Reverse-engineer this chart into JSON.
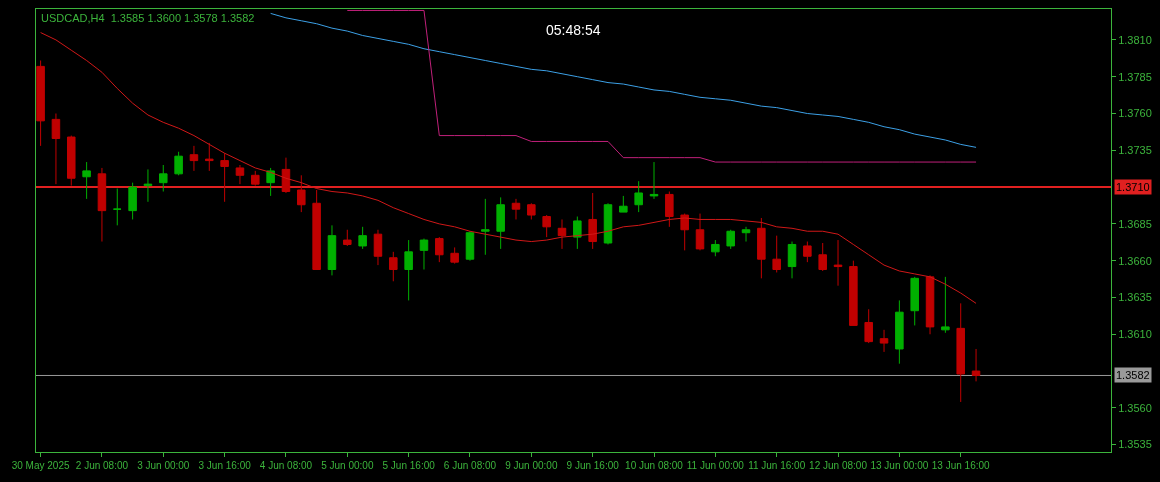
{
  "chart_data": {
    "type": "candlestick",
    "title": "USDCAD,H4  1.3585 1.3600 1.3578 1.3582",
    "categories": [
      "30 May 2025",
      null,
      null,
      null,
      "2 Jun 08:00",
      null,
      null,
      null,
      "3 Jun 00:00",
      null,
      null,
      null,
      "3 Jun 16:00",
      null,
      null,
      null,
      "4 Jun 08:00",
      null,
      null,
      null,
      "5 Jun 00:00",
      null,
      null,
      null,
      "5 Jun 16:00",
      null,
      null,
      null,
      "6 Jun 08:00",
      null,
      null,
      null,
      "9 Jun 00:00",
      null,
      null,
      null,
      "9 Jun 16:00",
      null,
      null,
      null,
      "10 Jun 08:00",
      null,
      null,
      null,
      "11 Jun 00:00",
      null,
      null,
      null,
      "11 Jun 16:00",
      null,
      null,
      null,
      "12 Jun 08:00",
      null,
      null,
      null,
      "13 Jun 00:00",
      null,
      null,
      null,
      "13 Jun 16:00",
      null
    ],
    "ohlc": [
      [
        1.3792,
        1.3796,
        1.3738,
        1.3755
      ],
      [
        1.3756,
        1.376,
        1.3712,
        1.3743
      ],
      [
        1.3744,
        1.3745,
        1.3711,
        1.3716
      ],
      [
        1.3717,
        1.3727,
        1.3702,
        1.3721
      ],
      [
        1.3719,
        1.3723,
        1.3673,
        1.3694
      ],
      [
        1.3695,
        1.3709,
        1.3684,
        1.3695
      ],
      [
        1.3694,
        1.3713,
        1.3688,
        1.371
      ],
      [
        1.3711,
        1.3722,
        1.37,
        1.3712
      ],
      [
        1.3713,
        1.3725,
        1.3707,
        1.3719
      ],
      [
        1.3719,
        1.3734,
        1.3718,
        1.3731
      ],
      [
        1.3732,
        1.3738,
        1.3721,
        1.3728
      ],
      [
        1.3729,
        1.374,
        1.3721,
        1.3728
      ],
      [
        1.3728,
        1.3733,
        1.37,
        1.3724
      ],
      [
        1.3723,
        1.3725,
        1.3712,
        1.3718
      ],
      [
        1.3718,
        1.3721,
        1.3711,
        1.3712
      ],
      [
        1.3713,
        1.3723,
        1.3704,
        1.3721
      ],
      [
        1.3722,
        1.373,
        1.3706,
        1.3707
      ],
      [
        1.3708,
        1.3718,
        1.3693,
        1.3698
      ],
      [
        1.3699,
        1.3708,
        1.3654,
        1.3654
      ],
      [
        1.3654,
        1.3684,
        1.365,
        1.3677
      ],
      [
        1.3674,
        1.3681,
        1.367,
        1.3671
      ],
      [
        1.367,
        1.3683,
        1.3668,
        1.3677
      ],
      [
        1.3678,
        1.3681,
        1.3657,
        1.3663
      ],
      [
        1.3662,
        1.3666,
        1.3646,
        1.3654
      ],
      [
        1.3654,
        1.3674,
        1.3633,
        1.3666
      ],
      [
        1.3667,
        1.3675,
        1.3654,
        1.3674
      ],
      [
        1.3675,
        1.3676,
        1.3659,
        1.3664
      ],
      [
        1.3665,
        1.3669,
        1.3658,
        1.3659
      ],
      [
        1.3661,
        1.368,
        1.366,
        1.3679
      ],
      [
        1.368,
        1.3702,
        1.3664,
        1.3681
      ],
      [
        1.368,
        1.3703,
        1.3668,
        1.3698
      ],
      [
        1.3699,
        1.3702,
        1.3688,
        1.3695
      ],
      [
        1.3698,
        1.3699,
        1.3688,
        1.3691
      ],
      [
        1.369,
        1.3691,
        1.3676,
        1.3683
      ],
      [
        1.3682,
        1.3688,
        1.3668,
        1.3677
      ],
      [
        1.3676,
        1.369,
        1.3668,
        1.3687
      ],
      [
        1.3688,
        1.3706,
        1.3668,
        1.3673
      ],
      [
        1.3672,
        1.3699,
        1.3671,
        1.3698
      ],
      [
        1.3693,
        1.3704,
        1.3693,
        1.3697
      ],
      [
        1.3698,
        1.3714,
        1.3693,
        1.3706
      ],
      [
        1.3704,
        1.3727,
        1.3702,
        1.3705
      ],
      [
        1.3705,
        1.3707,
        1.3683,
        1.369
      ],
      [
        1.3691,
        1.3692,
        1.3667,
        1.3681
      ],
      [
        1.3681,
        1.3692,
        1.3667,
        1.3668
      ],
      [
        1.3666,
        1.3674,
        1.3663,
        1.3671
      ],
      [
        1.367,
        1.3681,
        1.3668,
        1.368
      ],
      [
        1.3679,
        1.3683,
        1.3673,
        1.3681
      ],
      [
        1.3682,
        1.3689,
        1.3648,
        1.3661
      ],
      [
        1.3661,
        1.3677,
        1.3652,
        1.3654
      ],
      [
        1.3656,
        1.3673,
        1.3648,
        1.3671
      ],
      [
        1.367,
        1.3673,
        1.3659,
        1.3663
      ],
      [
        1.3664,
        1.3672,
        1.3653,
        1.3654
      ],
      [
        1.3657,
        1.3674,
        1.3643,
        1.3656
      ],
      [
        1.3656,
        1.366,
        1.3616,
        1.3616
      ],
      [
        1.3618,
        1.3627,
        1.3604,
        1.3605
      ],
      [
        1.3607,
        1.3613,
        1.3598,
        1.3604
      ],
      [
        1.36,
        1.3633,
        1.359,
        1.3625
      ],
      [
        1.3626,
        1.3649,
        1.3616,
        1.3648
      ],
      [
        1.3649,
        1.365,
        1.361,
        1.3615
      ],
      [
        1.3613,
        1.3649,
        1.3611,
        1.3615
      ],
      [
        1.3614,
        1.3631,
        1.3564,
        1.3583
      ],
      [
        1.3585,
        1.36,
        1.3578,
        1.3582
      ]
    ],
    "colors": [
      "#c00000",
      "#c00000",
      "#c00000",
      "#00b000",
      "#c00000",
      "#00b000",
      "#00b000",
      "#00b000",
      "#00b000",
      "#00b000",
      "#c00000",
      "#c00000",
      "#c00000",
      "#c00000",
      "#c00000",
      "#00b000",
      "#c00000",
      "#c00000",
      "#c00000",
      "#00b000",
      "#c00000",
      "#00b000",
      "#c00000",
      "#c00000",
      "#00b000",
      "#00b000",
      "#c00000",
      "#c00000",
      "#00b000",
      "#00b000",
      "#00b000",
      "#c00000",
      "#c00000",
      "#c00000",
      "#c00000",
      "#00b000",
      "#c00000",
      "#00b000",
      "#00b000",
      "#00b000",
      "#00b000",
      "#c00000",
      "#c00000",
      "#c00000",
      "#00b000",
      "#00b000",
      "#00b000",
      "#c00000",
      "#c00000",
      "#00b000",
      "#c00000",
      "#c00000",
      "#c00000",
      "#c00000",
      "#c00000",
      "#c00000",
      "#00b000",
      "#00b000",
      "#c00000",
      "#00b000",
      "#c00000",
      "#c00000"
    ],
    "series": [
      {
        "type": "line",
        "color": "#d01818",
        "values": [
          1.3815,
          1.381,
          1.3803,
          1.3796,
          1.3788,
          1.3777,
          1.3767,
          1.3759,
          1.3754,
          1.375,
          1.3745,
          1.3739,
          1.3733,
          1.3728,
          1.3723,
          1.372,
          1.3716,
          1.3713,
          1.3709,
          1.3707,
          1.3706,
          1.3704,
          1.3701,
          1.3696,
          1.3692,
          1.3688,
          1.3685,
          1.3683,
          1.368,
          1.3678,
          1.3676,
          1.3674,
          1.3673,
          1.3674,
          1.3676,
          1.3677,
          1.3678,
          1.368,
          1.3683,
          1.3684,
          1.3686,
          1.3688,
          1.3689,
          1.3688,
          1.3688,
          1.3688,
          1.3687,
          1.3686,
          1.3683,
          1.3682,
          1.368,
          1.368,
          1.3678,
          1.3671,
          1.3664,
          1.3657,
          1.3653,
          1.3651,
          1.3649,
          1.3644,
          1.3638,
          1.3631
        ]
      },
      {
        "type": "line",
        "color": "#3ca0e6",
        "values": [
          null,
          null,
          null,
          null,
          null,
          null,
          null,
          null,
          null,
          null,
          null,
          null,
          null,
          null,
          null,
          1.3828,
          1.3825,
          1.3823,
          1.3821,
          1.3818,
          1.3816,
          1.3813,
          1.3811,
          1.3809,
          1.3807,
          1.3804,
          1.3802,
          1.38,
          1.3798,
          1.3796,
          1.3794,
          1.3792,
          1.379,
          1.3789,
          1.3787,
          1.3785,
          1.3783,
          1.3781,
          1.378,
          1.3778,
          1.3776,
          1.3775,
          1.3773,
          1.3771,
          1.377,
          1.3769,
          1.3767,
          1.3765,
          1.3764,
          1.3762,
          1.376,
          1.3759,
          1.3758,
          1.3756,
          1.3754,
          1.3751,
          1.3749,
          1.3746,
          1.3744,
          1.3742,
          1.3739,
          1.3737
        ]
      },
      {
        "type": "line",
        "color": "#c0207a",
        "values": [
          null,
          null,
          null,
          null,
          null,
          null,
          null,
          null,
          null,
          null,
          null,
          null,
          null,
          null,
          null,
          null,
          null,
          null,
          null,
          null,
          1.383,
          1.383,
          1.383,
          1.383,
          1.383,
          1.383,
          1.3745,
          1.3745,
          1.3745,
          1.3745,
          1.3745,
          1.3745,
          1.3741,
          1.3741,
          1.3741,
          1.3741,
          1.3741,
          1.3741,
          1.373,
          1.373,
          1.373,
          1.373,
          1.373,
          1.373,
          1.3727,
          1.3727,
          1.3727,
          1.3727,
          1.3727,
          1.3727,
          1.3727,
          1.3727,
          1.3727,
          1.3727,
          1.3727,
          1.3727,
          1.3727,
          1.3727,
          1.3727,
          1.3727,
          1.3727,
          1.3727
        ]
      }
    ],
    "ylim": [
      1.353,
      1.3831
    ],
    "yticks": [
      1.3535,
      {
        "value": 1.356,
        "label": "1.3560"
      },
      {
        "value": 1.361,
        "label": "1.3610"
      },
      1.3635,
      {
        "value": 1.366,
        "label": "1.3660"
      },
      1.3685,
      1.3735,
      {
        "value": 1.376,
        "label": "1.3760"
      },
      1.3785,
      {
        "value": 1.381,
        "label": "1.3810"
      }
    ],
    "ref_lines": [
      {
        "axis": "y",
        "value": 1.371,
        "label": "1.3710",
        "color": "#e02020",
        "line_style": "solid"
      },
      {
        "axis": "y",
        "value": 1.3582,
        "label": "1.3582",
        "color": "#9a9a9a",
        "line_style": "solid"
      }
    ],
    "annotations": [
      "05:48:54"
    ]
  }
}
